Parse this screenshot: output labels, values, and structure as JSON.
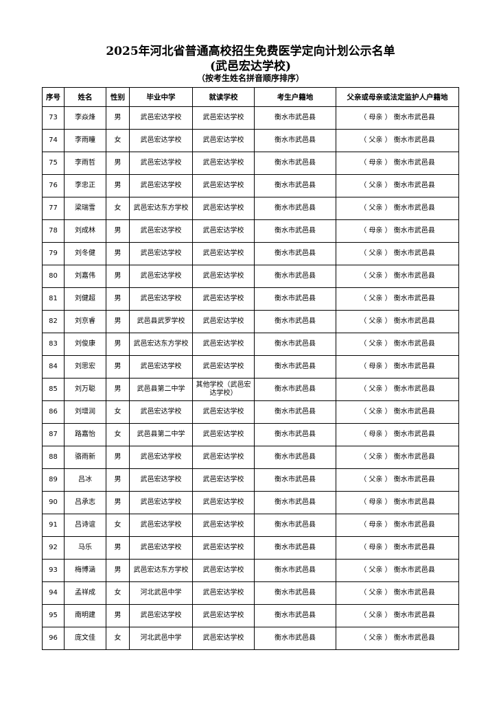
{
  "title": "2025年河北省普通高校招生免费医学定向计划公示名单",
  "subtitle": "(武邑宏达学校)",
  "note": "（按考生姓名拼音顺序排序）",
  "columns": [
    "序号",
    "姓名",
    "性别",
    "毕业中学",
    "就读学校",
    "考生户籍地",
    "父亲或母亲或法定监护人户籍地"
  ],
  "rows": [
    [
      "73",
      "李焱烽",
      "男",
      "武邑宏达学校",
      "武邑宏达学校",
      "衡水市武邑县",
      "（ 母亲 ） 衡水市武邑县"
    ],
    [
      "74",
      "李雨瞳",
      "女",
      "武邑宏达学校",
      "武邑宏达学校",
      "衡水市武邑县",
      "（ 父亲 ） 衡水市武邑县"
    ],
    [
      "75",
      "李雨哲",
      "男",
      "武邑宏达学校",
      "武邑宏达学校",
      "衡水市武邑县",
      "（ 母亲 ） 衡水市武邑县"
    ],
    [
      "76",
      "李忠正",
      "男",
      "武邑宏达学校",
      "武邑宏达学校",
      "衡水市武邑县",
      "（ 父亲 ） 衡水市武邑县"
    ],
    [
      "77",
      "梁瑞雪",
      "女",
      "武邑宏达东方学校",
      "武邑宏达学校",
      "衡水市武邑县",
      "（ 父亲 ） 衡水市武邑县"
    ],
    [
      "78",
      "刘成林",
      "男",
      "武邑宏达学校",
      "武邑宏达学校",
      "衡水市武邑县",
      "（ 母亲 ） 衡水市武邑县"
    ],
    [
      "79",
      "刘冬健",
      "男",
      "武邑宏达学校",
      "武邑宏达学校",
      "衡水市武邑县",
      "（ 父亲 ） 衡水市武邑县"
    ],
    [
      "80",
      "刘嘉伟",
      "男",
      "武邑宏达学校",
      "武邑宏达学校",
      "衡水市武邑县",
      "（ 父亲 ） 衡水市武邑县"
    ],
    [
      "81",
      "刘健超",
      "男",
      "武邑宏达学校",
      "武邑宏达学校",
      "衡水市武邑县",
      "（ 父亲 ） 衡水市武邑县"
    ],
    [
      "82",
      "刘京睿",
      "男",
      "武邑县武罗学校",
      "武邑宏达学校",
      "衡水市武邑县",
      "（ 父亲 ） 衡水市武邑县"
    ],
    [
      "83",
      "刘俊康",
      "男",
      "武邑宏达东方学校",
      "武邑宏达学校",
      "衡水市武邑县",
      "（ 父亲 ） 衡水市武邑县"
    ],
    [
      "84",
      "刘思宏",
      "男",
      "武邑宏达学校",
      "武邑宏达学校",
      "衡水市武邑县",
      "（ 母亲 ） 衡水市武邑县"
    ],
    [
      "85",
      "刘万聪",
      "男",
      "武邑县第二中学",
      "其他学校（武邑宏达学校）",
      "衡水市武邑县",
      "（ 父亲 ） 衡水市武邑县"
    ],
    [
      "86",
      "刘增润",
      "女",
      "武邑宏达学校",
      "武邑宏达学校",
      "衡水市武邑县",
      "（ 父亲 ） 衡水市武邑县"
    ],
    [
      "87",
      "路嘉怡",
      "女",
      "武邑县第二中学",
      "武邑宏达学校",
      "衡水市武邑县",
      "（ 母亲 ） 衡水市武邑县"
    ],
    [
      "88",
      "骆雨新",
      "男",
      "武邑宏达学校",
      "武邑宏达学校",
      "衡水市武邑县",
      "（ 父亲 ） 衡水市武邑县"
    ],
    [
      "89",
      "吕冰",
      "男",
      "武邑宏达学校",
      "武邑宏达学校",
      "衡水市武邑县",
      "（ 父亲 ） 衡水市武邑县"
    ],
    [
      "90",
      "吕承志",
      "男",
      "武邑宏达学校",
      "武邑宏达学校",
      "衡水市武邑县",
      "（ 母亲 ） 衡水市武邑县"
    ],
    [
      "91",
      "吕诗谊",
      "女",
      "武邑宏达学校",
      "武邑宏达学校",
      "衡水市武邑县",
      "（ 母亲 ） 衡水市武邑县"
    ],
    [
      "92",
      "马乐",
      "男",
      "武邑宏达学校",
      "武邑宏达学校",
      "衡水市武邑县",
      "（ 母亲 ） 衡水市武邑县"
    ],
    [
      "93",
      "梅博涵",
      "男",
      "武邑宏达东方学校",
      "武邑宏达学校",
      "衡水市武邑县",
      "（ 父亲 ） 衡水市武邑县"
    ],
    [
      "94",
      "孟祥成",
      "女",
      "河北武邑中学",
      "武邑宏达学校",
      "衡水市武邑县",
      "（ 父亲 ） 衡水市武邑县"
    ],
    [
      "95",
      "南明建",
      "男",
      "武邑宏达学校",
      "武邑宏达学校",
      "衡水市武邑县",
      "（ 父亲 ） 衡水市武邑县"
    ],
    [
      "96",
      "庞文佳",
      "女",
      "河北武邑中学",
      "武邑宏达学校",
      "衡水市武邑县",
      "（ 父亲 ） 衡水市武邑县"
    ]
  ]
}
